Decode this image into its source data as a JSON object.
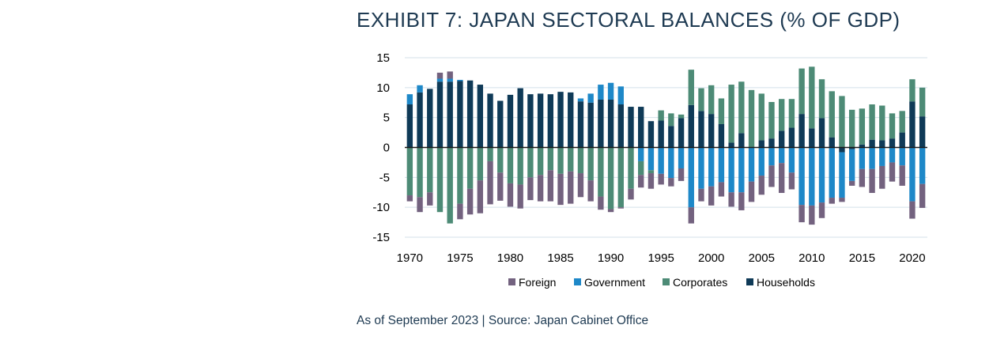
{
  "title": "EXHIBIT 7: JAPAN SECTORAL BALANCES (% OF GDP)",
  "source": "As of September 2023 | Source: Japan Cabinet Office",
  "chart_data": {
    "type": "bar",
    "stacked": true,
    "x": [
      1970,
      1971,
      1972,
      1973,
      1974,
      1975,
      1976,
      1977,
      1978,
      1979,
      1980,
      1981,
      1982,
      1983,
      1984,
      1985,
      1986,
      1987,
      1988,
      1989,
      1990,
      1991,
      1992,
      1993,
      1994,
      1995,
      1996,
      1997,
      1998,
      1999,
      2000,
      2001,
      2002,
      2003,
      2004,
      2005,
      2006,
      2007,
      2008,
      2009,
      2010,
      2011,
      2012,
      2013,
      2014,
      2015,
      2016,
      2017,
      2018,
      2019,
      2020,
      2021
    ],
    "xticks": [
      "1970",
      "1975",
      "1980",
      "1985",
      "1990",
      "1995",
      "2000",
      "2005",
      "2010",
      "2015",
      "2020"
    ],
    "yticks": [
      "15",
      "10",
      "5",
      "0",
      "-5",
      "-10",
      "-15"
    ],
    "ylim": [
      -15,
      15
    ],
    "grid": true,
    "legend_position": "bottom",
    "series": [
      {
        "name": "Households",
        "color": "#0f3a57",
        "values": [
          7.2,
          9.2,
          9.8,
          11.0,
          11.0,
          11.1,
          11.2,
          10.5,
          9.0,
          7.8,
          8.8,
          9.9,
          8.9,
          9.0,
          8.9,
          9.3,
          9.2,
          7.7,
          7.5,
          8.0,
          8.0,
          7.2,
          6.8,
          6.8,
          4.4,
          4.5,
          3.6,
          4.9,
          7.1,
          6.1,
          5.6,
          3.9,
          0.8,
          2.4,
          0.0,
          1.2,
          1.5,
          2.8,
          3.3,
          5.6,
          3.2,
          4.9,
          1.7,
          -0.8,
          -0.3,
          0.5,
          1.3,
          1.2,
          1.5,
          2.5,
          7.7,
          5.2
        ]
      },
      {
        "name": "Government",
        "color": "#1e88c8",
        "values": [
          1.7,
          1.2,
          0,
          0.5,
          0.5,
          0.2,
          0,
          0,
          0,
          0,
          0,
          0,
          0,
          0,
          0,
          0,
          0,
          0.5,
          1.5,
          2.5,
          2.8,
          3.0,
          0,
          -2.3,
          -3.8,
          -4.4,
          -5.1,
          -3.5,
          -10.0,
          -6.9,
          -6.5,
          -5.8,
          -7.5,
          -7.5,
          -5.7,
          -4.7,
          -3.0,
          -2.6,
          -4.2,
          -9.6,
          -9.7,
          -9.2,
          -8.4,
          -7.6,
          -5.3,
          -3.6,
          -3.6,
          -3.1,
          -2.5,
          -3.0,
          -9.0,
          -6.1
        ]
      },
      {
        "name": "Corporates",
        "color": "#4d8b76",
        "values": [
          -8.0,
          -8.3,
          -7.5,
          -10.8,
          -12.7,
          -9.4,
          -6.9,
          -5.5,
          -2.3,
          -4.2,
          -6.0,
          -6.2,
          -5.0,
          -4.6,
          -3.8,
          -4.4,
          -4.0,
          -4.3,
          -5.5,
          -8.2,
          -10.3,
          -10.0,
          -6.9,
          -2.3,
          -0.5,
          1.7,
          2.1,
          0.6,
          5.9,
          3.8,
          4.8,
          4.3,
          9.7,
          8.6,
          9.6,
          7.8,
          6.1,
          5.3,
          4.8,
          7.6,
          10.3,
          6.5,
          7.7,
          8.6,
          6.3,
          6.0,
          5.9,
          5.8,
          4.2,
          3.6,
          3.7,
          4.8
        ]
      },
      {
        "name": "Foreign",
        "color": "#73627f",
        "values": [
          -1.0,
          -2.5,
          -2.2,
          1.0,
          1.2,
          -2.6,
          -4.3,
          -5.5,
          -7.2,
          -4.7,
          -3.9,
          -4.0,
          -3.8,
          -4.4,
          -5.2,
          -5.2,
          -5.4,
          -4.0,
          -3.5,
          -2.2,
          -0.5,
          -0.2,
          -1.8,
          -2.1,
          -2.6,
          -1.8,
          -1.4,
          -2.1,
          -2.7,
          -2.1,
          -3.2,
          -2.4,
          -2.4,
          -3.0,
          -3.4,
          -3.2,
          -3.6,
          -5.0,
          -2.8,
          -2.9,
          -3.2,
          -2.6,
          -1.0,
          -0.7,
          -0.8,
          -3.0,
          -4.0,
          -3.8,
          -3.2,
          -3.4,
          -2.9,
          -4.0
        ]
      }
    ],
    "legend_order": [
      "Foreign",
      "Government",
      "Corporates",
      "Households"
    ]
  }
}
